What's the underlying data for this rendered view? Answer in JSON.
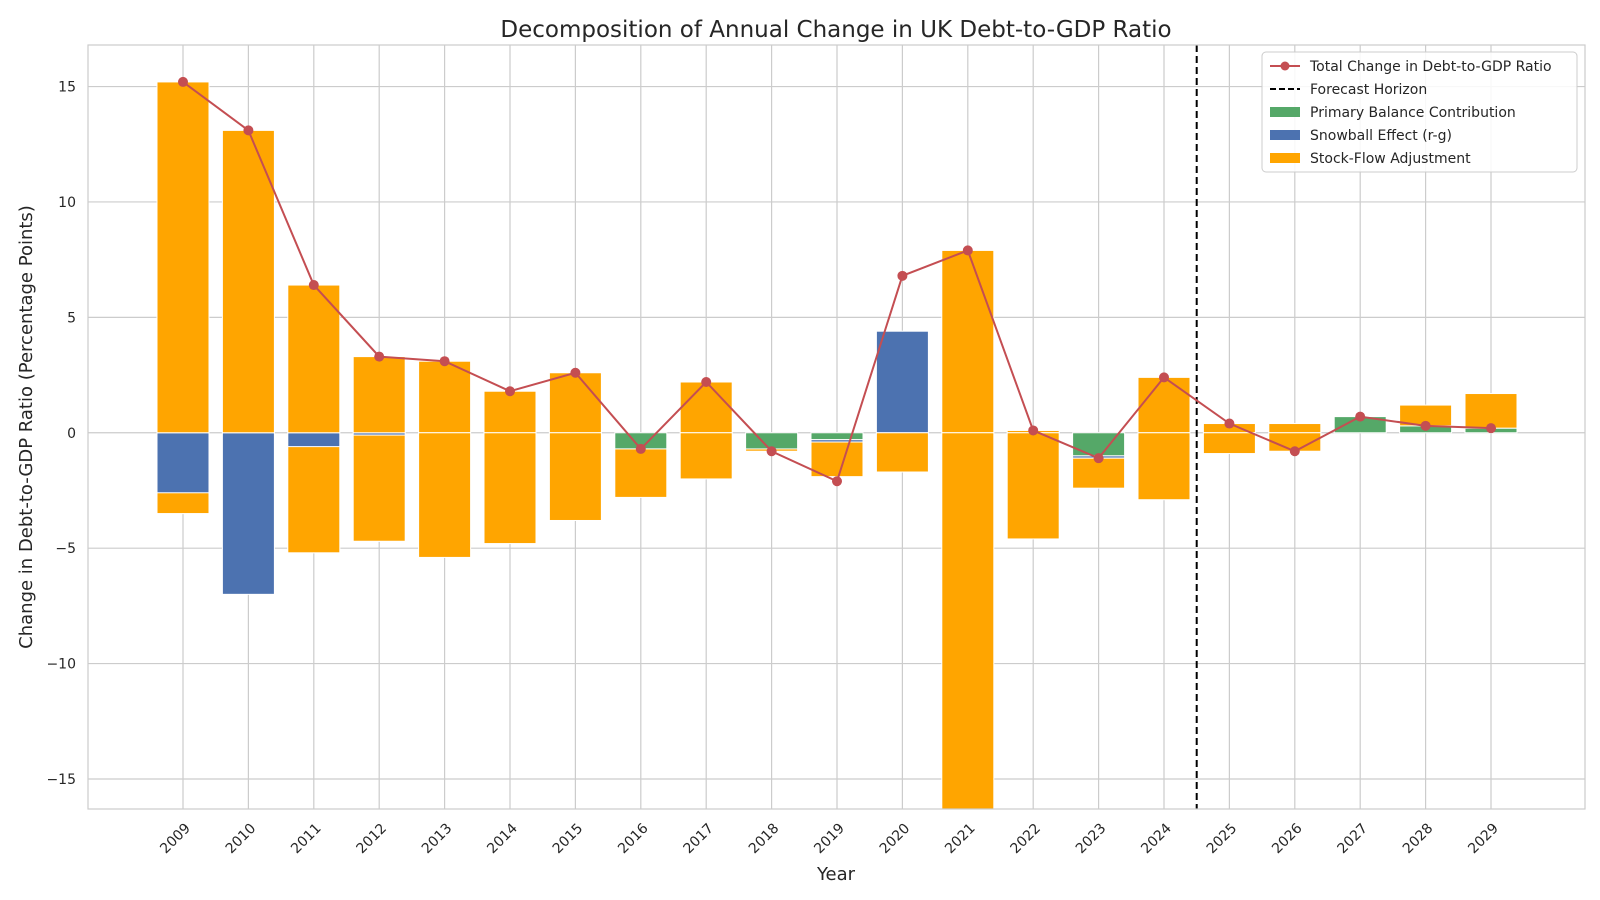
{
  "chart_data": {
    "type": "bar",
    "title": "Decomposition of Annual Change in UK Debt-to-GDP Ratio",
    "xlabel": "Year",
    "ylabel": "Change in Debt-to-GDP Ratio (Percentage Points)",
    "categories": [
      "2009",
      "2010",
      "2011",
      "2012",
      "2013",
      "2014",
      "2015",
      "2016",
      "2017",
      "2018",
      "2019",
      "2020",
      "2021",
      "2022",
      "2023",
      "2024",
      "2025",
      "2026",
      "2027",
      "2028",
      "2029"
    ],
    "ylim": [
      -16.3,
      16.8
    ],
    "yticks": [
      -15,
      -10,
      -5,
      0,
      5,
      10,
      15
    ],
    "ytick_labels": [
      "−15",
      "−10",
      "−5",
      "0",
      "5",
      "10",
      "15"
    ],
    "grid": true,
    "legend_position": "top-right",
    "forecast_horizon_after": "2024",
    "colors": {
      "primary": "#55a868",
      "snowball": "#4c72b0",
      "sfa": "#ffa500",
      "total": "#c44e52",
      "horizon": "#000000",
      "grid": "#cccccc"
    },
    "series": [
      {
        "key": "primary",
        "name": "Primary Balance Contribution",
        "values": [
          0,
          0,
          0,
          0,
          0,
          0,
          0,
          -0.7,
          0,
          -0.8,
          -0.3,
          0,
          0,
          0,
          -1.0,
          0,
          0,
          0,
          0.7,
          0.3,
          0.2
        ]
      },
      {
        "key": "snowball",
        "name": "Snowball Effect (r-g)",
        "values": [
          -3.5,
          -7.0,
          -5.2,
          -4.7,
          0,
          0,
          0,
          0,
          0,
          0,
          -1.6,
          4.4,
          0,
          0,
          -0.1,
          0,
          0,
          0,
          0,
          0,
          0
        ]
      },
      {
        "key": "sfa",
        "name": "Stock-Flow Adjustment",
        "values": [
          15.2,
          13.1,
          6.4,
          3.3,
          3.1,
          1.8,
          2.6,
          -2.8,
          2.2,
          -0.7,
          -0.4,
          2.3,
          7.9,
          0.1,
          -2.4,
          2.4,
          0.4,
          0.4,
          0.4,
          1.2,
          1.7
        ]
      },
      {
        "key": "sfa_lower",
        "name": "",
        "values": [
          -2.6,
          0,
          -0.6,
          -0.1,
          -5.4,
          -4.8,
          -3.8,
          0,
          -2.0,
          0,
          0,
          -1.7,
          -16.3,
          -4.6,
          0,
          -2.9,
          -0.9,
          -0.8,
          0,
          0,
          0
        ]
      },
      {
        "key": "total",
        "name": "Total Change in Debt-to-GDP Ratio",
        "values": [
          15.2,
          13.1,
          6.4,
          3.3,
          3.1,
          1.8,
          2.6,
          -0.7,
          2.2,
          -0.8,
          -2.1,
          6.8,
          7.9,
          0.1,
          -1.1,
          2.4,
          0.4,
          -0.8,
          0.7,
          0.3,
          0.2
        ]
      }
    ],
    "legend": [
      {
        "key": "total",
        "label": "Total Change in Debt-to-GDP Ratio",
        "kind": "line-marker"
      },
      {
        "key": "horizon",
        "label": "Forecast Horizon",
        "kind": "dashed"
      },
      {
        "key": "primary",
        "label": "Primary Balance Contribution",
        "kind": "patch"
      },
      {
        "key": "snowball",
        "label": "Snowball Effect (r-g)",
        "kind": "patch"
      },
      {
        "key": "sfa",
        "label": "Stock-Flow Adjustment",
        "kind": "patch"
      }
    ]
  }
}
